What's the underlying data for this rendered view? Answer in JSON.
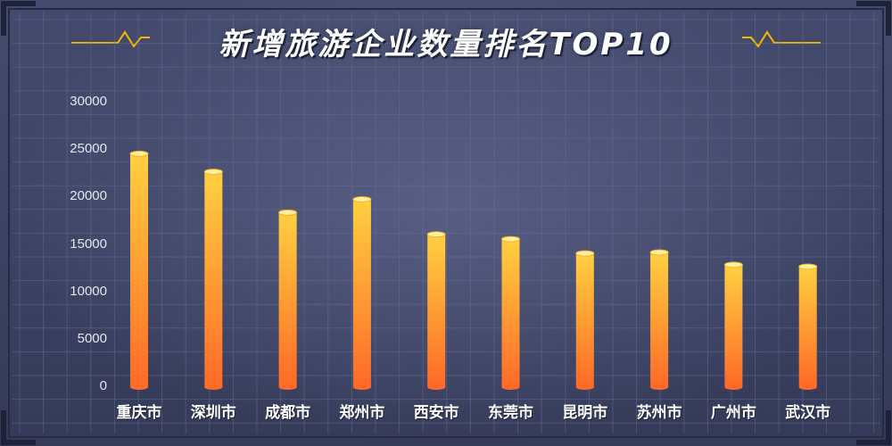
{
  "chart_data": {
    "type": "bar",
    "title": "新增旅游企业数量排名TOP10",
    "categories": [
      "重庆市",
      "深圳市",
      "成都市",
      "郑州市",
      "西安市",
      "东莞市",
      "昆明市",
      "苏州市",
      "广州市",
      "武汉市"
    ],
    "values": [
      24600,
      22700,
      18400,
      19800,
      16100,
      15600,
      14100,
      14200,
      12900,
      12700
    ],
    "yticks": [
      "30000",
      "25000",
      "20000",
      "15000",
      "10000",
      "5000",
      "0"
    ],
    "ylim": [
      0,
      30000
    ],
    "grid": true,
    "colors": {
      "bar_top": "#ffd040",
      "bar_bottom": "#ff6a28",
      "accent": "#f5b800",
      "grid": "#6c7396"
    }
  }
}
